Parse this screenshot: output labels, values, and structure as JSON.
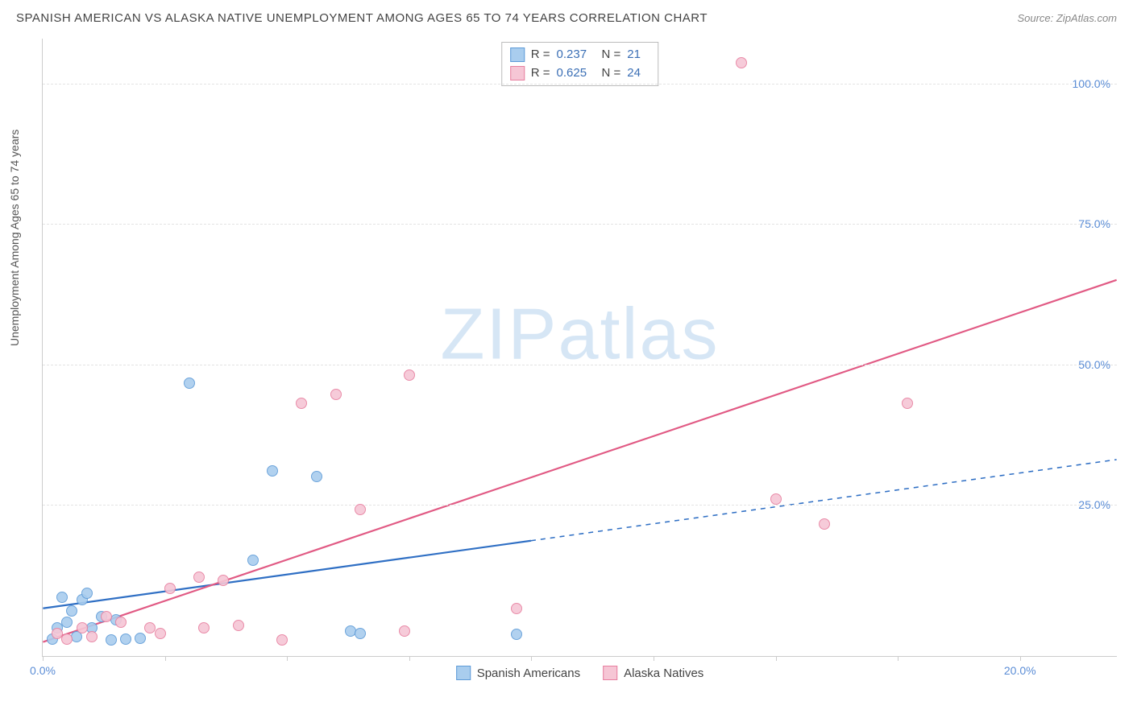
{
  "title": "SPANISH AMERICAN VS ALASKA NATIVE UNEMPLOYMENT AMONG AGES 65 TO 74 YEARS CORRELATION CHART",
  "source": "Source: ZipAtlas.com",
  "ylabel": "Unemployment Among Ages 65 to 74 years",
  "watermark": "ZIPatlas",
  "chart": {
    "type": "scatter",
    "xlim": [
      0,
      22
    ],
    "ylim": [
      -2,
      108
    ],
    "background_color": "#ffffff",
    "grid_color": "#e3e3e3",
    "axis_color": "#cccccc",
    "tick_label_color": "#5b8dd6",
    "tick_fontsize": 14,
    "marker_radius": 7,
    "marker_stroke_width": 1.2,
    "marker_fill_opacity": 0.25,
    "x_ticks": [
      0,
      2.5,
      5,
      7.5,
      10,
      12.5,
      15,
      17.5,
      20
    ],
    "x_tick_labels": {
      "0": "0.0%",
      "20": "20.0%"
    },
    "y_ticks": [
      25,
      50,
      75,
      100
    ],
    "y_tick_labels": {
      "25": "25.0%",
      "50": "50.0%",
      "75": "75.0%",
      "100": "100.0%"
    }
  },
  "series": [
    {
      "id": "spanish",
      "label": "Spanish Americans",
      "color_stroke": "#5e9bd8",
      "color_fill": "#a9cdee",
      "r_value": "0.237",
      "n_value": "21",
      "trend": {
        "solid_end_x": 10,
        "x1": 0,
        "y1": 6.5,
        "x2": 22,
        "y2": 33,
        "color": "#2f6fc4",
        "width": 2.2
      },
      "points": [
        [
          0.2,
          1.0
        ],
        [
          0.3,
          3.0
        ],
        [
          0.4,
          8.5
        ],
        [
          0.5,
          4.0
        ],
        [
          0.6,
          6.0
        ],
        [
          0.7,
          1.5
        ],
        [
          0.8,
          8.0
        ],
        [
          0.9,
          9.2
        ],
        [
          1.0,
          3.0
        ],
        [
          1.2,
          5.0
        ],
        [
          1.4,
          0.8
        ],
        [
          1.5,
          4.5
        ],
        [
          1.7,
          1.0
        ],
        [
          2.0,
          1.2
        ],
        [
          3.0,
          46.5
        ],
        [
          4.3,
          15.0
        ],
        [
          4.7,
          31.0
        ],
        [
          5.6,
          30.0
        ],
        [
          6.3,
          2.5
        ],
        [
          6.5,
          2.0
        ],
        [
          9.7,
          1.8
        ]
      ]
    },
    {
      "id": "alaska",
      "label": "Alaska Natives",
      "color_stroke": "#e77f9f",
      "color_fill": "#f6c6d5",
      "r_value": "0.625",
      "n_value": "24",
      "trend": {
        "solid_end_x": 22,
        "x1": 0,
        "y1": 0.5,
        "x2": 22,
        "y2": 65,
        "color": "#e15a84",
        "width": 2.2
      },
      "points": [
        [
          0.3,
          2.0
        ],
        [
          0.5,
          1.0
        ],
        [
          0.8,
          3.0
        ],
        [
          1.0,
          1.5
        ],
        [
          1.3,
          5.0
        ],
        [
          1.6,
          4.0
        ],
        [
          2.2,
          3.0
        ],
        [
          2.4,
          2.0
        ],
        [
          2.6,
          10.0
        ],
        [
          3.2,
          12.0
        ],
        [
          3.3,
          3.0
        ],
        [
          3.7,
          11.5
        ],
        [
          4.0,
          3.5
        ],
        [
          4.9,
          0.8
        ],
        [
          5.3,
          43.0
        ],
        [
          6.0,
          44.5
        ],
        [
          6.5,
          24.0
        ],
        [
          7.4,
          2.5
        ],
        [
          7.5,
          48.0
        ],
        [
          9.7,
          6.5
        ],
        [
          14.3,
          103.5
        ],
        [
          15.0,
          26.0
        ],
        [
          16.0,
          21.5
        ],
        [
          17.7,
          43.0
        ]
      ]
    }
  ],
  "stats_box": {
    "r_label": "R =",
    "n_label": "N ="
  }
}
